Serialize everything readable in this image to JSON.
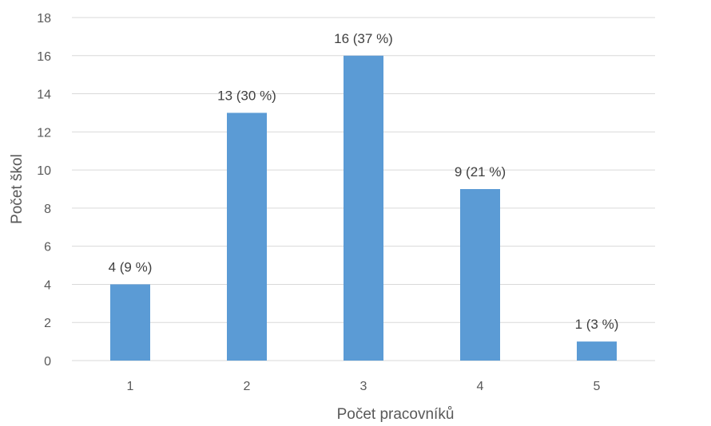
{
  "chart_data": {
    "type": "bar",
    "categories": [
      "1",
      "2",
      "3",
      "4",
      "5"
    ],
    "values": [
      4,
      13,
      16,
      9,
      1
    ],
    "data_labels": [
      "4 (9 %)",
      "13 (30 %)",
      "16 (37 %)",
      "9 (21 %)",
      "1 (3 %)"
    ],
    "y_ticks": [
      "0",
      "2",
      "4",
      "6",
      "8",
      "10",
      "12",
      "14",
      "16",
      "18"
    ],
    "ylim": [
      0,
      18
    ],
    "xlabel": "Počet pracovníků",
    "ylabel": "Počet škol",
    "grid": true,
    "bar_color": "#5b9bd5"
  }
}
